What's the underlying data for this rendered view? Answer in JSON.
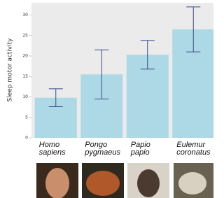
{
  "chart_data": {
    "type": "bar",
    "ylabel": "Sleep motor activity",
    "categories": [
      "Homo sapiens",
      "Pongo pygmaeus",
      "Papio papio",
      "Eulemur coronatus"
    ],
    "values": [
      9.8,
      15.5,
      20.3,
      26.5
    ],
    "errors": [
      2.2,
      6,
      3.5,
      5.5
    ],
    "color": "#add8e6",
    "error_color": "#3b4a8c",
    "ylim": [
      0,
      33
    ],
    "yticks": [
      0,
      5,
      10,
      15,
      20,
      25,
      30
    ]
  }
}
